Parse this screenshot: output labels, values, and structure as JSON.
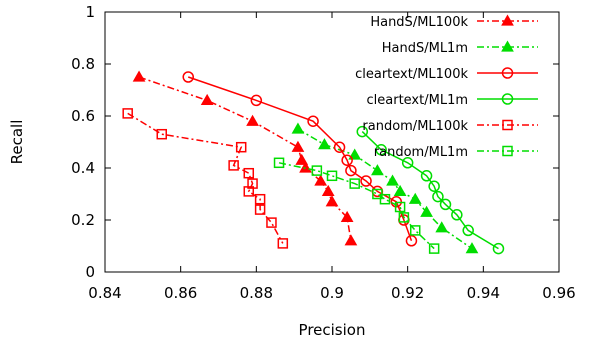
{
  "chart_data": {
    "type": "line",
    "xlabel": "Precision",
    "ylabel": "Recall",
    "xlim": [
      0.84,
      0.96
    ],
    "ylim": [
      0,
      1
    ],
    "xticks": [
      0.84,
      0.86,
      0.88,
      0.9,
      0.92,
      0.94,
      0.96
    ],
    "xtick_labels": [
      "0.84",
      "0.86",
      "0.88",
      "0.9",
      "0.92",
      "0.94",
      "0.96"
    ],
    "yticks": [
      0,
      0.2,
      0.4,
      0.6,
      0.8,
      1
    ],
    "ytick_labels": [
      "0",
      "0.2",
      "0.4",
      "0.6",
      "0.8",
      "1"
    ],
    "grid": false,
    "legend_position": "top-right",
    "series": [
      {
        "name": "HandS/ML100k",
        "color": "#ff0000",
        "line_style": "dash-dot",
        "marker": "filled-triangle",
        "points": [
          [
            0.849,
            0.75
          ],
          [
            0.867,
            0.66
          ],
          [
            0.879,
            0.58
          ],
          [
            0.891,
            0.48
          ],
          [
            0.892,
            0.43
          ],
          [
            0.893,
            0.4
          ],
          [
            0.897,
            0.35
          ],
          [
            0.899,
            0.31
          ],
          [
            0.9,
            0.27
          ],
          [
            0.904,
            0.21
          ],
          [
            0.905,
            0.12
          ]
        ]
      },
      {
        "name": "HandS/ML1m",
        "color": "#00dd00",
        "line_style": "dash-dot",
        "marker": "filled-triangle",
        "points": [
          [
            0.891,
            0.55
          ],
          [
            0.898,
            0.49
          ],
          [
            0.906,
            0.45
          ],
          [
            0.912,
            0.39
          ],
          [
            0.916,
            0.35
          ],
          [
            0.918,
            0.31
          ],
          [
            0.922,
            0.28
          ],
          [
            0.925,
            0.23
          ],
          [
            0.929,
            0.17
          ],
          [
            0.937,
            0.09
          ]
        ]
      },
      {
        "name": "cleartext/ML100k",
        "color": "#ff0000",
        "line_style": "solid",
        "marker": "open-circle",
        "points": [
          [
            0.862,
            0.75
          ],
          [
            0.88,
            0.66
          ],
          [
            0.895,
            0.58
          ],
          [
            0.902,
            0.48
          ],
          [
            0.904,
            0.43
          ],
          [
            0.905,
            0.39
          ],
          [
            0.909,
            0.35
          ],
          [
            0.912,
            0.31
          ],
          [
            0.917,
            0.27
          ],
          [
            0.919,
            0.2
          ],
          [
            0.921,
            0.12
          ]
        ]
      },
      {
        "name": "cleartext/ML1m",
        "color": "#00dd00",
        "line_style": "solid",
        "marker": "open-circle",
        "points": [
          [
            0.908,
            0.54
          ],
          [
            0.913,
            0.47
          ],
          [
            0.92,
            0.42
          ],
          [
            0.925,
            0.37
          ],
          [
            0.927,
            0.33
          ],
          [
            0.928,
            0.29
          ],
          [
            0.93,
            0.26
          ],
          [
            0.933,
            0.22
          ],
          [
            0.936,
            0.16
          ],
          [
            0.944,
            0.09
          ]
        ]
      },
      {
        "name": "random/ML100k",
        "color": "#ff0000",
        "line_style": "dash-dot",
        "marker": "open-square",
        "points": [
          [
            0.846,
            0.61
          ],
          [
            0.855,
            0.53
          ],
          [
            0.876,
            0.48
          ],
          [
            0.874,
            0.41
          ],
          [
            0.878,
            0.38
          ],
          [
            0.879,
            0.34
          ],
          [
            0.878,
            0.31
          ],
          [
            0.881,
            0.28
          ],
          [
            0.881,
            0.24
          ],
          [
            0.884,
            0.19
          ],
          [
            0.887,
            0.11
          ]
        ]
      },
      {
        "name": "random/ML1m",
        "color": "#00dd00",
        "line_style": "dash-dot",
        "marker": "open-square",
        "points": [
          [
            0.886,
            0.42
          ],
          [
            0.896,
            0.39
          ],
          [
            0.9,
            0.37
          ],
          [
            0.906,
            0.34
          ],
          [
            0.912,
            0.3
          ],
          [
            0.914,
            0.28
          ],
          [
            0.918,
            0.25
          ],
          [
            0.919,
            0.21
          ],
          [
            0.922,
            0.16
          ],
          [
            0.927,
            0.09
          ]
        ]
      }
    ]
  }
}
